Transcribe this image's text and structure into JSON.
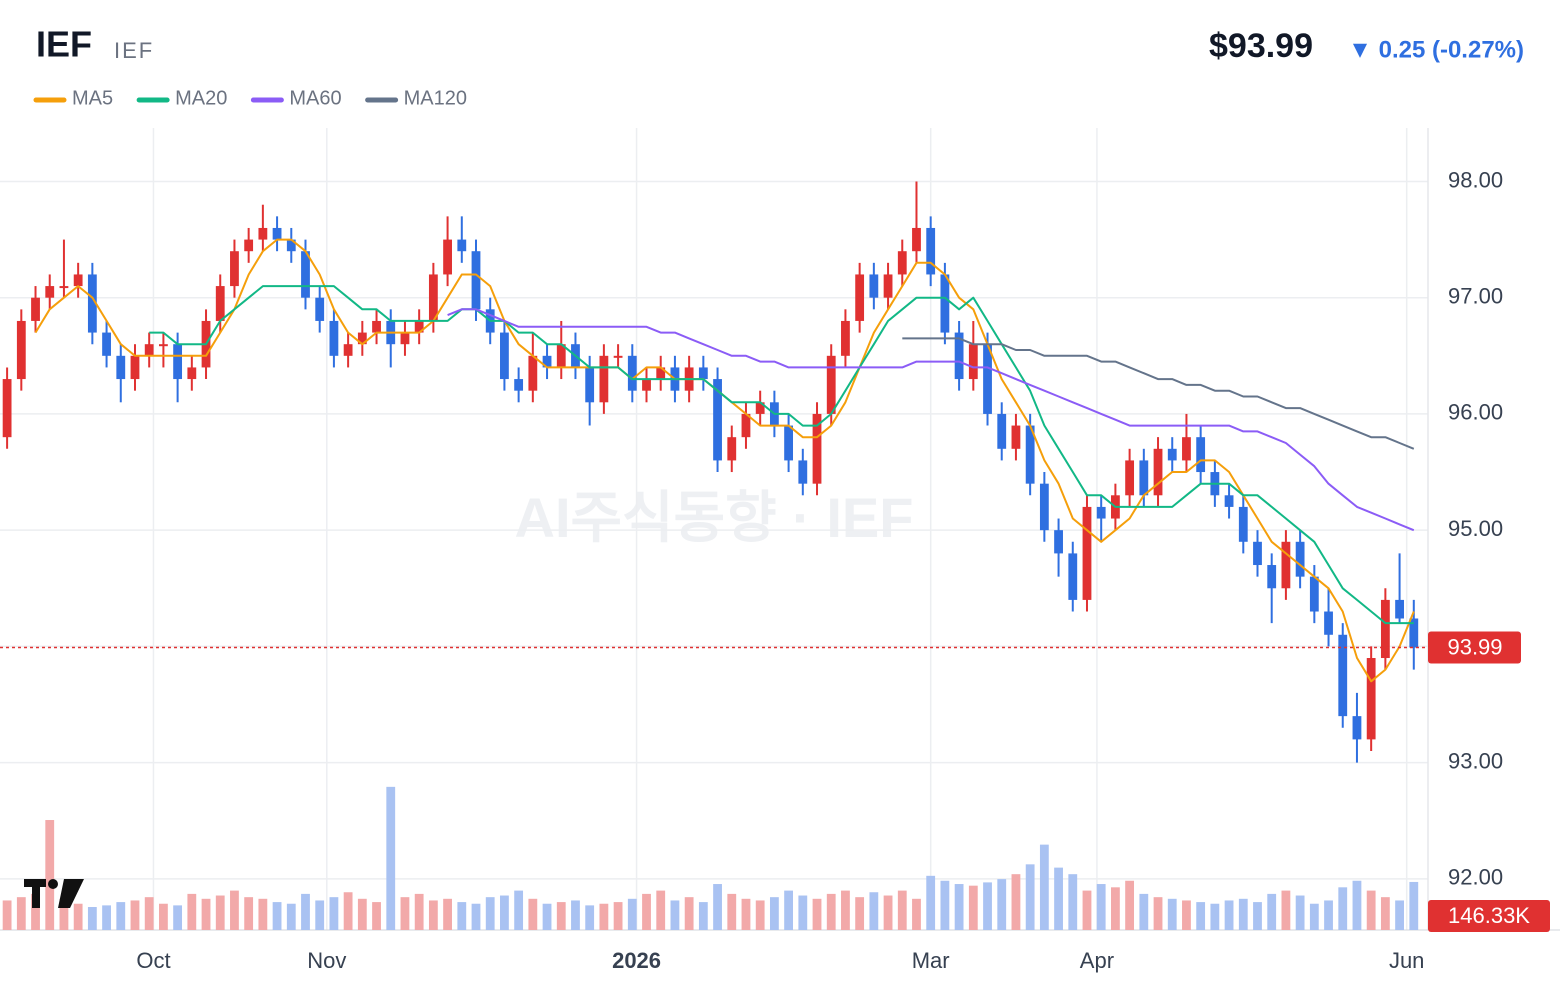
{
  "chart_data": {
    "type": "candlestick",
    "title": "IEF",
    "subtitle": "IEF",
    "price_label": "$93.99",
    "change_label": "▼ 0.25 (-0.27%)",
    "watermark": "AI주식동향 · IEF",
    "up_color": "#e03131",
    "down_color": "#2f6fe0",
    "up_volume_color": "#f2a9a9",
    "down_volume_color": "#a9c2f2",
    "grid": true,
    "xlim": [
      -0.5,
      100
    ],
    "xticks": [
      {
        "value": 10.3,
        "label": "Oct"
      },
      {
        "value": 22.5,
        "label": "Nov"
      },
      {
        "value": 44.3,
        "label": "2026"
      },
      {
        "value": 65.0,
        "label": "Mar"
      },
      {
        "value": 76.7,
        "label": "Apr"
      },
      {
        "value": 98.5,
        "label": "Jun"
      }
    ],
    "ylim": [
      91.56,
      98.46
    ],
    "yticks": [
      {
        "value": 92,
        "label": "92.00"
      },
      {
        "value": 93,
        "label": "93.00"
      },
      {
        "value": 94,
        "label": "94.00"
      },
      {
        "value": 95,
        "label": "95.00"
      },
      {
        "value": 96,
        "label": "96.00"
      },
      {
        "value": 97,
        "label": "97.00"
      },
      {
        "value": 98,
        "label": "98.00"
      }
    ],
    "last_price": 93.99,
    "vlim": [
      0,
      600
    ],
    "last_volume_label": "146.33K",
    "candles": [
      [
        95.8,
        96.4,
        95.7,
        96.3
      ],
      [
        96.3,
        96.9,
        96.2,
        96.8
      ],
      [
        96.8,
        97.1,
        96.7,
        97.0
      ],
      [
        97.0,
        97.2,
        96.9,
        97.1
      ],
      [
        97.1,
        97.5,
        97.0,
        97.1
      ],
      [
        97.1,
        97.3,
        97.0,
        97.2
      ],
      [
        97.2,
        97.3,
        96.6,
        96.7
      ],
      [
        96.7,
        96.8,
        96.4,
        96.5
      ],
      [
        96.5,
        96.6,
        96.1,
        96.3
      ],
      [
        96.3,
        96.6,
        96.2,
        96.5
      ],
      [
        96.5,
        96.7,
        96.4,
        96.6
      ],
      [
        96.6,
        96.7,
        96.4,
        96.6
      ],
      [
        96.6,
        96.7,
        96.1,
        96.3
      ],
      [
        96.3,
        96.5,
        96.2,
        96.4
      ],
      [
        96.4,
        96.9,
        96.3,
        96.8
      ],
      [
        96.8,
        97.2,
        96.7,
        97.1
      ],
      [
        97.1,
        97.5,
        97.0,
        97.4
      ],
      [
        97.4,
        97.6,
        97.3,
        97.5
      ],
      [
        97.5,
        97.8,
        97.4,
        97.6
      ],
      [
        97.6,
        97.7,
        97.4,
        97.5
      ],
      [
        97.5,
        97.6,
        97.3,
        97.4
      ],
      [
        97.4,
        97.5,
        96.9,
        97.0
      ],
      [
        97.0,
        97.1,
        96.7,
        96.8
      ],
      [
        96.8,
        96.9,
        96.4,
        96.5
      ],
      [
        96.5,
        96.7,
        96.4,
        96.6
      ],
      [
        96.6,
        96.8,
        96.5,
        96.7
      ],
      [
        96.7,
        96.9,
        96.6,
        96.8
      ],
      [
        96.8,
        96.9,
        96.4,
        96.6
      ],
      [
        96.6,
        96.8,
        96.5,
        96.7
      ],
      [
        96.7,
        96.9,
        96.6,
        96.8
      ],
      [
        96.8,
        97.3,
        96.7,
        97.2
      ],
      [
        97.2,
        97.7,
        97.1,
        97.5
      ],
      [
        97.5,
        97.7,
        97.3,
        97.4
      ],
      [
        97.4,
        97.5,
        96.8,
        96.9
      ],
      [
        96.9,
        97.0,
        96.6,
        96.7
      ],
      [
        96.7,
        96.8,
        96.2,
        96.3
      ],
      [
        96.3,
        96.4,
        96.1,
        96.2
      ],
      [
        96.2,
        96.7,
        96.1,
        96.5
      ],
      [
        96.5,
        96.6,
        96.3,
        96.4
      ],
      [
        96.4,
        96.8,
        96.3,
        96.6
      ],
      [
        96.6,
        96.7,
        96.3,
        96.4
      ],
      [
        96.4,
        96.5,
        95.9,
        96.1
      ],
      [
        96.1,
        96.6,
        96.0,
        96.5
      ],
      [
        96.5,
        96.6,
        96.4,
        96.5
      ],
      [
        96.5,
        96.6,
        96.1,
        96.2
      ],
      [
        96.2,
        96.4,
        96.1,
        96.3
      ],
      [
        96.3,
        96.5,
        96.2,
        96.4
      ],
      [
        96.4,
        96.5,
        96.1,
        96.2
      ],
      [
        96.2,
        96.5,
        96.1,
        96.4
      ],
      [
        96.4,
        96.5,
        96.2,
        96.3
      ],
      [
        96.3,
        96.4,
        95.5,
        95.6
      ],
      [
        95.6,
        95.9,
        95.5,
        95.8
      ],
      [
        95.8,
        96.1,
        95.7,
        96.0
      ],
      [
        96.0,
        96.2,
        95.9,
        96.1
      ],
      [
        96.1,
        96.2,
        95.8,
        95.9
      ],
      [
        95.9,
        96.0,
        95.5,
        95.6
      ],
      [
        95.6,
        95.7,
        95.3,
        95.4
      ],
      [
        95.4,
        96.1,
        95.3,
        96.0
      ],
      [
        96.0,
        96.6,
        95.9,
        96.5
      ],
      [
        96.5,
        96.9,
        96.4,
        96.8
      ],
      [
        96.8,
        97.3,
        96.7,
        97.2
      ],
      [
        97.2,
        97.3,
        96.9,
        97.0
      ],
      [
        97.0,
        97.3,
        96.9,
        97.2
      ],
      [
        97.2,
        97.5,
        97.1,
        97.4
      ],
      [
        97.4,
        98.0,
        97.3,
        97.6
      ],
      [
        97.6,
        97.7,
        97.1,
        97.2
      ],
      [
        97.2,
        97.3,
        96.6,
        96.7
      ],
      [
        96.7,
        96.8,
        96.2,
        96.3
      ],
      [
        96.3,
        96.8,
        96.2,
        96.6
      ],
      [
        96.6,
        96.7,
        95.9,
        96.0
      ],
      [
        96.0,
        96.1,
        95.6,
        95.7
      ],
      [
        95.7,
        96.0,
        95.6,
        95.9
      ],
      [
        95.9,
        96.0,
        95.3,
        95.4
      ],
      [
        95.4,
        95.5,
        94.9,
        95.0
      ],
      [
        95.0,
        95.1,
        94.6,
        94.8
      ],
      [
        94.8,
        94.9,
        94.3,
        94.4
      ],
      [
        94.4,
        95.3,
        94.3,
        95.2
      ],
      [
        95.2,
        95.3,
        94.9,
        95.1
      ],
      [
        95.1,
        95.4,
        95.0,
        95.3
      ],
      [
        95.3,
        95.7,
        95.2,
        95.6
      ],
      [
        95.6,
        95.7,
        95.2,
        95.3
      ],
      [
        95.3,
        95.8,
        95.2,
        95.7
      ],
      [
        95.7,
        95.8,
        95.5,
        95.6
      ],
      [
        95.6,
        96.0,
        95.5,
        95.8
      ],
      [
        95.8,
        95.9,
        95.4,
        95.5
      ],
      [
        95.5,
        95.6,
        95.2,
        95.3
      ],
      [
        95.3,
        95.4,
        95.1,
        95.2
      ],
      [
        95.2,
        95.3,
        94.8,
        94.9
      ],
      [
        94.9,
        95.0,
        94.6,
        94.7
      ],
      [
        94.7,
        94.8,
        94.2,
        94.5
      ],
      [
        94.5,
        95.0,
        94.4,
        94.9
      ],
      [
        94.9,
        95.0,
        94.5,
        94.6
      ],
      [
        94.6,
        94.7,
        94.2,
        94.3
      ],
      [
        94.3,
        94.5,
        94.0,
        94.1
      ],
      [
        94.1,
        94.2,
        93.3,
        93.4
      ],
      [
        93.4,
        93.6,
        93.0,
        93.2
      ],
      [
        93.2,
        94.0,
        93.1,
        93.9
      ],
      [
        93.9,
        94.5,
        93.8,
        94.4
      ],
      [
        94.4,
        94.8,
        94.2,
        94.24
      ],
      [
        94.24,
        94.4,
        93.8,
        93.99
      ]
    ],
    "volume": [
      90,
      100,
      110,
      335,
      95,
      80,
      70,
      75,
      85,
      90,
      100,
      80,
      75,
      110,
      95,
      105,
      120,
      100,
      95,
      85,
      80,
      110,
      90,
      100,
      115,
      95,
      85,
      436,
      100,
      110,
      90,
      95,
      85,
      80,
      100,
      105,
      120,
      95,
      80,
      85,
      90,
      75,
      80,
      85,
      95,
      110,
      120,
      90,
      100,
      85,
      140,
      110,
      95,
      90,
      100,
      120,
      105,
      95,
      110,
      120,
      100,
      115,
      105,
      120,
      95,
      165,
      150,
      140,
      135,
      145,
      155,
      170,
      200,
      260,
      190,
      170,
      120,
      140,
      130,
      150,
      110,
      100,
      95,
      90,
      85,
      80,
      90,
      95,
      85,
      110,
      120,
      105,
      80,
      90,
      130,
      150,
      120,
      100,
      90,
      146.33
    ],
    "series": [
      {
        "name": "MA5",
        "color": "#f59f0b",
        "values": [
          null,
          null,
          96.7,
          96.9,
          97.0,
          97.1,
          97.0,
          96.8,
          96.6,
          96.5,
          96.5,
          96.5,
          96.5,
          96.5,
          96.5,
          96.7,
          96.9,
          97.2,
          97.4,
          97.5,
          97.5,
          97.4,
          97.2,
          96.9,
          96.7,
          96.6,
          96.7,
          96.7,
          96.7,
          96.7,
          96.8,
          97.0,
          97.2,
          97.2,
          97.1,
          96.8,
          96.6,
          96.5,
          96.4,
          96.4,
          96.4,
          96.4,
          96.4,
          96.4,
          96.3,
          96.4,
          96.4,
          96.3,
          96.3,
          96.3,
          96.2,
          96.1,
          96.0,
          95.9,
          95.9,
          95.9,
          95.8,
          95.8,
          95.9,
          96.1,
          96.4,
          96.7,
          96.9,
          97.1,
          97.3,
          97.3,
          97.2,
          97.0,
          96.9,
          96.6,
          96.3,
          96.1,
          95.9,
          95.6,
          95.4,
          95.1,
          95.0,
          94.9,
          95.0,
          95.1,
          95.3,
          95.4,
          95.5,
          95.5,
          95.6,
          95.6,
          95.5,
          95.3,
          95.1,
          94.9,
          94.8,
          94.7,
          94.6,
          94.5,
          94.3,
          93.9,
          93.7,
          93.8,
          94.0,
          94.3
        ]
      },
      {
        "name": "MA20",
        "color": "#12b886",
        "values": [
          null,
          null,
          null,
          null,
          null,
          null,
          null,
          null,
          null,
          null,
          96.7,
          96.7,
          96.6,
          96.6,
          96.6,
          96.8,
          96.9,
          97.0,
          97.1,
          97.1,
          97.1,
          97.1,
          97.1,
          97.1,
          97.0,
          96.9,
          96.9,
          96.8,
          96.8,
          96.8,
          96.8,
          96.8,
          96.9,
          96.9,
          96.8,
          96.8,
          96.7,
          96.7,
          96.6,
          96.6,
          96.5,
          96.4,
          96.4,
          96.4,
          96.3,
          96.3,
          96.3,
          96.3,
          96.3,
          96.3,
          96.2,
          96.1,
          96.1,
          96.1,
          96.0,
          96.0,
          95.9,
          95.9,
          96.0,
          96.2,
          96.4,
          96.6,
          96.8,
          96.9,
          97.0,
          97.0,
          97.0,
          96.9,
          97.0,
          96.8,
          96.6,
          96.4,
          96.2,
          95.9,
          95.7,
          95.5,
          95.3,
          95.3,
          95.2,
          95.2,
          95.2,
          95.2,
          95.2,
          95.3,
          95.4,
          95.4,
          95.4,
          95.3,
          95.3,
          95.2,
          95.1,
          95.0,
          94.9,
          94.7,
          94.5,
          94.4,
          94.3,
          94.2,
          94.2,
          94.2
        ]
      },
      {
        "name": "MA60",
        "color": "#8b5cf6",
        "values": [
          null,
          null,
          null,
          null,
          null,
          null,
          null,
          null,
          null,
          null,
          null,
          null,
          null,
          null,
          null,
          null,
          null,
          null,
          null,
          null,
          null,
          null,
          null,
          null,
          null,
          null,
          null,
          null,
          null,
          null,
          null,
          96.85,
          96.9,
          96.9,
          96.85,
          96.8,
          96.75,
          96.75,
          96.75,
          96.75,
          96.75,
          96.75,
          96.75,
          96.75,
          96.75,
          96.75,
          96.7,
          96.7,
          96.65,
          96.6,
          96.55,
          96.5,
          96.5,
          96.45,
          96.45,
          96.4,
          96.4,
          96.4,
          96.4,
          96.4,
          96.4,
          96.4,
          96.4,
          96.4,
          96.45,
          96.45,
          96.45,
          96.45,
          96.4,
          96.4,
          96.35,
          96.3,
          96.25,
          96.2,
          96.15,
          96.1,
          96.05,
          96.0,
          95.95,
          95.9,
          95.9,
          95.9,
          95.9,
          95.9,
          95.9,
          95.9,
          95.9,
          95.85,
          95.85,
          95.8,
          95.75,
          95.65,
          95.55,
          95.4,
          95.3,
          95.2,
          95.15,
          95.1,
          95.05,
          95.0
        ]
      },
      {
        "name": "MA120",
        "color": "#64748b",
        "values": [
          null,
          null,
          null,
          null,
          null,
          null,
          null,
          null,
          null,
          null,
          null,
          null,
          null,
          null,
          null,
          null,
          null,
          null,
          null,
          null,
          null,
          null,
          null,
          null,
          null,
          null,
          null,
          null,
          null,
          null,
          null,
          null,
          null,
          null,
          null,
          null,
          null,
          null,
          null,
          null,
          null,
          null,
          null,
          null,
          null,
          null,
          null,
          null,
          null,
          null,
          null,
          null,
          null,
          null,
          null,
          null,
          null,
          null,
          null,
          null,
          null,
          null,
          null,
          96.65,
          96.65,
          96.65,
          96.65,
          96.65,
          96.6,
          96.6,
          96.6,
          96.55,
          96.55,
          96.5,
          96.5,
          96.5,
          96.5,
          96.45,
          96.45,
          96.4,
          96.35,
          96.3,
          96.3,
          96.25,
          96.25,
          96.2,
          96.2,
          96.15,
          96.15,
          96.1,
          96.05,
          96.05,
          96.0,
          95.95,
          95.9,
          95.85,
          95.8,
          95.8,
          95.75,
          95.7
        ]
      }
    ]
  }
}
